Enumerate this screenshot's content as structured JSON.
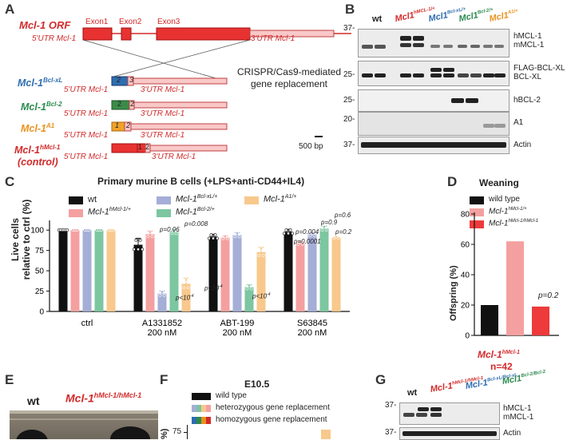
{
  "panelA": {
    "letter": "A",
    "orf_label": "Mcl-1 ORF",
    "exon1": "Exon1",
    "exon2": "Exon2",
    "exon3": "Exon3",
    "utr5": "5'UTR Mcl-1",
    "utr3": "3'UTR Mcl-1",
    "crispr_line1": "CRISPR/Cas9-mediated",
    "crispr_line2": "gene replacement",
    "allele_bclxl": "Mcl-1",
    "allele_bclxl_sup": "Bcl-xL",
    "allele_bcl2": "Mcl-1",
    "allele_bcl2_sup": "Bcl-2",
    "allele_a1": "Mcl-1",
    "allele_a1_sup": "A1",
    "allele_hmcl1": "Mcl-1",
    "allele_hmcl1_sup": "hMcl-1",
    "control": "(control)",
    "scale": "500 bp",
    "box_nums": [
      "2",
      "2",
      "1",
      "1"
    ],
    "box_nums2": [
      "3",
      "2",
      "2",
      "2"
    ]
  },
  "panelB": {
    "letter": "B",
    "lanes": [
      "wt",
      "Mcl1",
      "Mcl1",
      "Mcl1",
      "Mcl1"
    ],
    "lane_sups": [
      "",
      "hMCL-1/+",
      "Bcl-xL/+",
      "Bcl-2/+",
      "A1/+"
    ],
    "mw_37": "37-",
    "mw_25": "25-",
    "mw_25b": "25-",
    "mw_20": "20-",
    "mw_37b": "37-",
    "labels": {
      "hmcl1": "hMCL-1",
      "mmcl1": "mMCL-1",
      "flag": "FLAG-BCL-XL",
      "bclxl": "BCL-XL",
      "hbcl2": "hBCL-2",
      "a1": "A1",
      "actin": "Actin"
    }
  },
  "panelC": {
    "letter": "C",
    "title": "Primary murine B cells (+LPS+anti-CD44+IL4)",
    "ylabel1": "Live cells",
    "ylabel2": "relative to ctrl (%)",
    "legend": [
      {
        "name": "wt",
        "sup": "",
        "color": "#111111"
      },
      {
        "name": "Mcl-1",
        "sup": "hMcl-1/+",
        "color": "#f4a0a0"
      },
      {
        "name": "Mcl-1",
        "sup": "Bcl-xL/+",
        "color": "#a4aed6"
      },
      {
        "name": "Mcl-1",
        "sup": "Bcl-2/+",
        "color": "#7cc6a0"
      },
      {
        "name": "Mcl-1",
        "sup": "A1/+",
        "color": "#f8c88c"
      }
    ],
    "pvalues": {
      "p1": "p=0.06",
      "p2": "p=0.008",
      "p3": "p<10",
      "p4": "p<10",
      "p5": "p=0.0001",
      "p6": "p<10",
      "p7": "p=0.004",
      "p8": "p=0.9",
      "p9": "p=0.6",
      "p10": "p=0.2",
      "exp": "-4"
    },
    "chart_data": {
      "type": "bar",
      "categories": [
        "ctrl",
        "A1331852 200 nM",
        "ABT-199 200 nM",
        "S63845 200 nM"
      ],
      "category_lines": [
        [
          "ctrl",
          ""
        ],
        [
          "A1331852",
          "200 nM"
        ],
        [
          "ABT-199",
          "200 nM"
        ],
        [
          "S63845",
          "200 nM"
        ]
      ],
      "series": [
        {
          "name": "wt",
          "values": [
            100,
            82,
            92,
            98
          ]
        },
        {
          "name": "Mcl-1hMcl-1/+",
          "values": [
            100,
            95,
            91,
            84
          ]
        },
        {
          "name": "Mcl-1Bcl-xL/+",
          "values": [
            100,
            22,
            94,
            95
          ]
        },
        {
          "name": "Mcl-1Bcl-2/+",
          "values": [
            100,
            98,
            30,
            102
          ]
        },
        {
          "name": "Mcl-1A1/+",
          "values": [
            100,
            34,
            73,
            91
          ]
        }
      ],
      "errors": [
        [
          0,
          8,
          3,
          3
        ],
        [
          0,
          4,
          2,
          2
        ],
        [
          0,
          3,
          3,
          2
        ],
        [
          0,
          3,
          3,
          3
        ],
        [
          0,
          7,
          6,
          1
        ]
      ],
      "ylim": [
        0,
        110
      ],
      "yticks": [
        0,
        25,
        50,
        75,
        100
      ],
      "yticklabels": [
        "0",
        "25",
        "50",
        "75",
        "100"
      ]
    }
  },
  "panelD": {
    "letter": "D",
    "title": "Weaning",
    "ylabel": "Offspring (%)",
    "pval": "p=0.2",
    "geno_label": "Mcl-1",
    "geno_sup": "hMcl-1",
    "n_label": "n=42",
    "legend": [
      {
        "name": "wild type",
        "sup": "",
        "color": "#111111"
      },
      {
        "name": "Mcl-1",
        "sup": "hMcl-1/+",
        "color": "#f4a0a0"
      },
      {
        "name": "Mcl-1",
        "sup": "hMcl-1/hMcl-1",
        "color": "#ee3a3a"
      }
    ],
    "chart_data": {
      "type": "bar",
      "categories": [
        "wild type",
        "Mcl-1hMcl-1/+",
        "Mcl-1hMcl-1/hMcl-1"
      ],
      "values": [
        20,
        62,
        19
      ],
      "ylim": [
        0,
        80
      ],
      "yticks": [
        0,
        20,
        40,
        60,
        80
      ],
      "yticklabels": [
        "0",
        "20",
        "40",
        "60",
        "80"
      ]
    }
  },
  "panelE": {
    "letter": "E",
    "wt": "wt",
    "geno": "Mcl-1",
    "geno_sup": "hMcl-1/hMcl-1"
  },
  "panelF": {
    "letter": "F",
    "title": "E10.5",
    "legend1": "wild type",
    "legend2": "heterozygous gene replacement",
    "legend3": "homozygous gene replacement",
    "ytick": "75",
    "ylabel_frag": "%)"
  },
  "panelG": {
    "letter": "G",
    "lanes": [
      "wt",
      "Mcl-1",
      "Mcl-1",
      "Mcl1"
    ],
    "lane_sups": [
      "",
      "hMcl-1/hMcl-1",
      "Bcl-xL/Bcl-xL",
      "Bcl-2/Bcl-2"
    ],
    "mw_37": "37-",
    "mw_37b": "37-",
    "hmcl1": "hMCL-1",
    "mmcl1": "mMCL-1",
    "actin": "Actin"
  }
}
